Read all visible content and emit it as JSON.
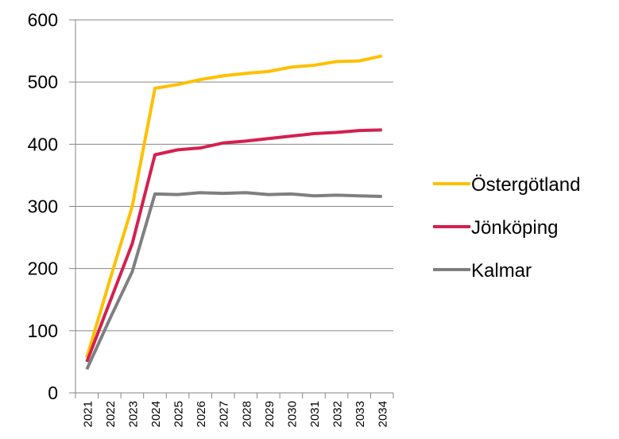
{
  "chart_data": {
    "type": "line",
    "categories": [
      "2021",
      "2022",
      "2023",
      "2024",
      "2025",
      "2026",
      "2027",
      "2028",
      "2029",
      "2030",
      "2031",
      "2032",
      "2033",
      "2034"
    ],
    "series": [
      {
        "name": "Östergötland",
        "color": "#ffc000",
        "values": [
          57,
          180,
          300,
          490,
          496,
          504,
          510,
          514,
          517,
          524,
          527,
          533,
          534,
          542
        ]
      },
      {
        "name": "Jönköping",
        "color": "#d42050",
        "values": [
          50,
          145,
          240,
          383,
          391,
          394,
          402,
          405,
          409,
          413,
          417,
          419,
          422,
          423
        ]
      },
      {
        "name": "Kalmar",
        "color": "#7f7f7f",
        "values": [
          38,
          118,
          195,
          320,
          319,
          322,
          321,
          322,
          319,
          320,
          317,
          318,
          317,
          316
        ]
      }
    ],
    "ylim": [
      0,
      600
    ],
    "yticks": [
      0,
      100,
      200,
      300,
      400,
      500,
      600
    ],
    "grid": true,
    "legend": "right"
  }
}
